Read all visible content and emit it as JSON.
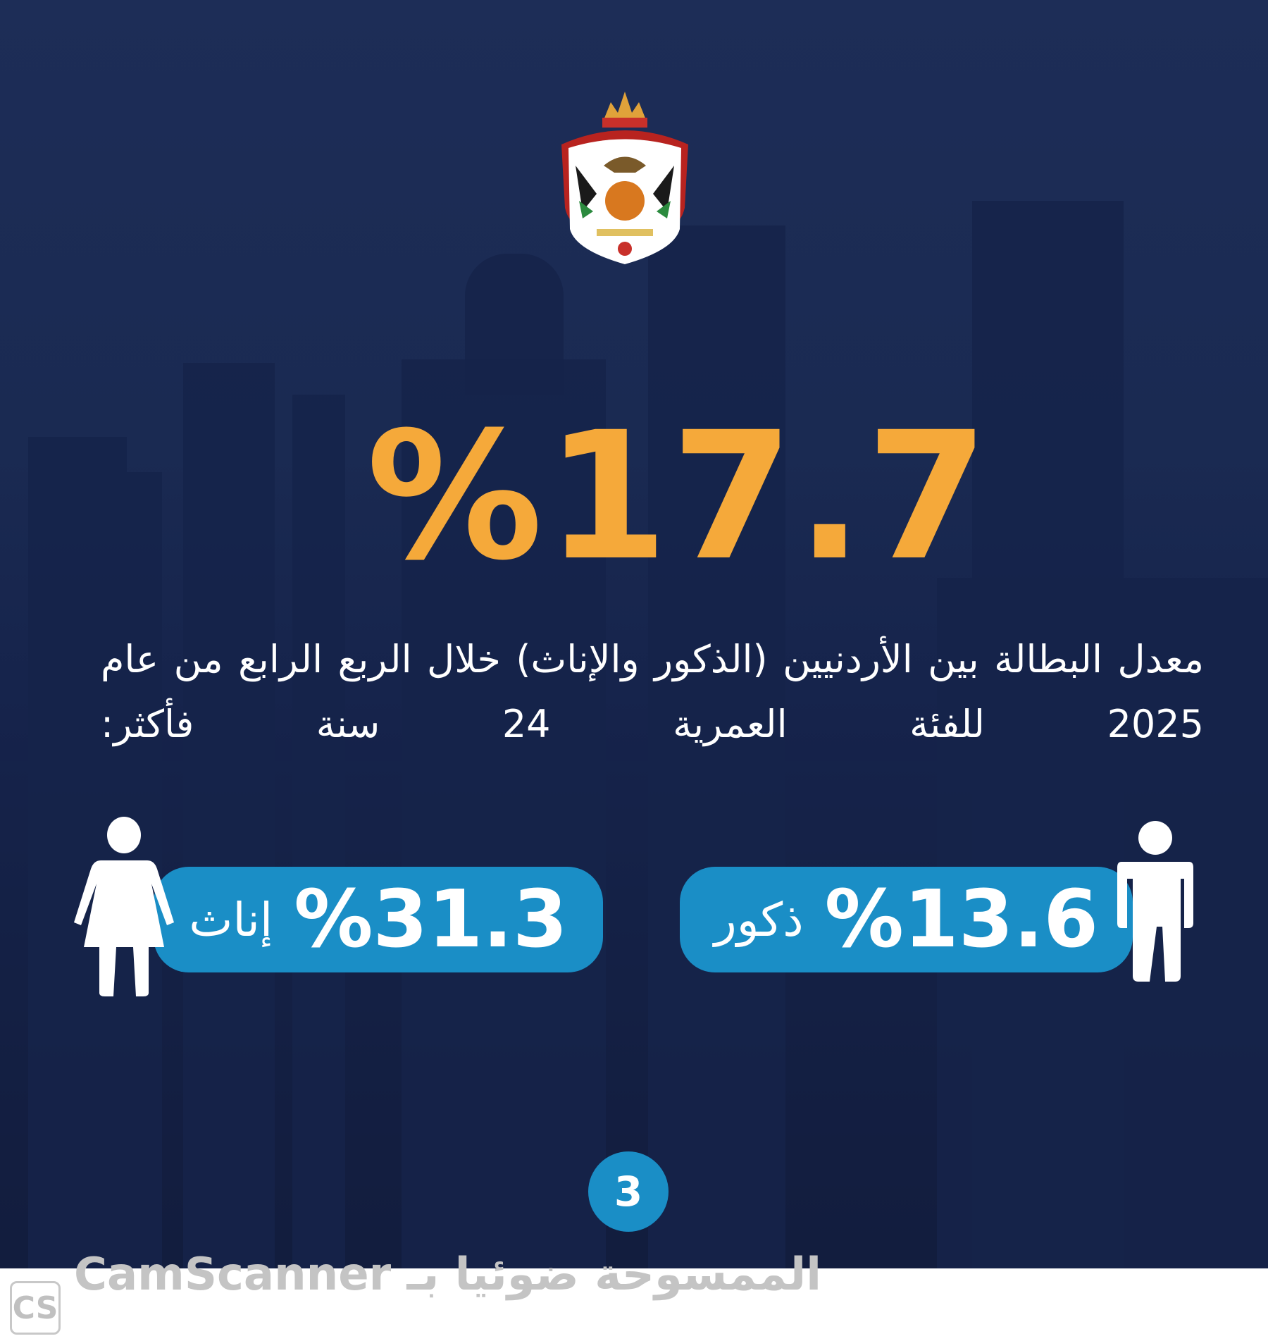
{
  "headline": {
    "value": "%17.7",
    "color": "#F5A93A"
  },
  "description": "معدل البطالة بين الأردنيين (الذكور والإناث) خلال الربع الرابع من عام 2025 للفئة العمرية 24 سنة فأكثر:",
  "male": {
    "value": "%13.6",
    "label": "ذكور",
    "icon": "male-figure-icon"
  },
  "female": {
    "value": "%31.3",
    "label": "إناث",
    "icon": "female-figure-icon"
  },
  "page_number": "3",
  "colors": {
    "background": "#1A2A52",
    "accent": "#1A8EC6",
    "highlight": "#F5A93A"
  },
  "emblem": {
    "name": "jordan-coat-of-arms"
  },
  "watermark": {
    "text": "الممسوحة ضوئيا بـ CamScanner",
    "logo": "CS"
  }
}
